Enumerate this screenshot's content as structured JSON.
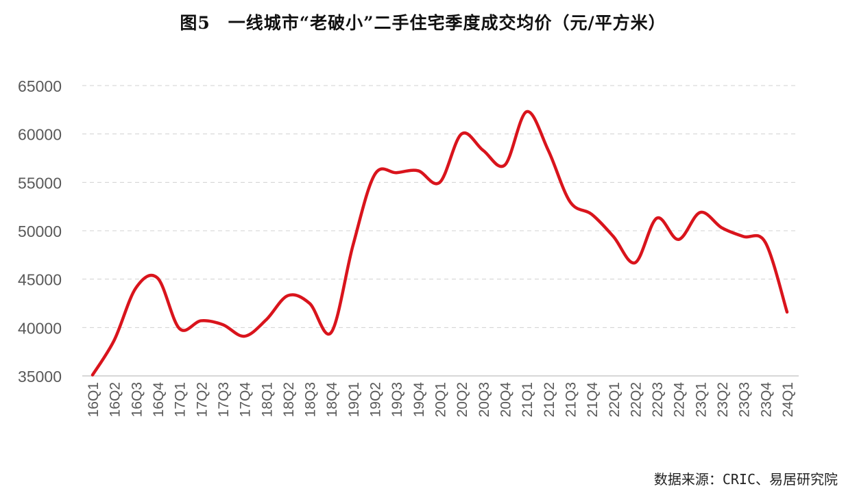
{
  "title": "图5　一线城市“老破小”二手住宅季度成交均价（元/平方米）",
  "source": "数据来源：CRIC、易居研究院",
  "chart_data": {
    "type": "line",
    "title": "图5　一线城市“老破小”二手住宅季度成交均价（元/平方米）",
    "xlabel": "",
    "ylabel": "",
    "ylim": [
      35000,
      65000
    ],
    "yticks": [
      35000,
      40000,
      45000,
      50000,
      55000,
      60000,
      65000
    ],
    "grid": "horizontal-dashed",
    "line_color": "#d9141c",
    "categories": [
      "16Q1",
      "16Q2",
      "16Q3",
      "16Q4",
      "17Q1",
      "17Q2",
      "17Q3",
      "17Q4",
      "18Q1",
      "18Q2",
      "18Q3",
      "18Q4",
      "19Q1",
      "19Q2",
      "19Q3",
      "19Q4",
      "20Q1",
      "20Q2",
      "20Q3",
      "20Q4",
      "21Q1",
      "21Q2",
      "21Q3",
      "21Q4",
      "22Q1",
      "22Q2",
      "22Q3",
      "22Q4",
      "23Q1",
      "23Q2",
      "23Q3",
      "23Q4",
      "24Q1"
    ],
    "values": [
      35100,
      38700,
      44100,
      45100,
      39900,
      40700,
      40300,
      39100,
      40800,
      43300,
      42500,
      39500,
      48500,
      55800,
      56000,
      56200,
      55000,
      60000,
      58300,
      56800,
      62300,
      58300,
      53000,
      51700,
      49400,
      46700,
      51300,
      49100,
      51900,
      50300,
      49400,
      48800,
      41600
    ]
  }
}
